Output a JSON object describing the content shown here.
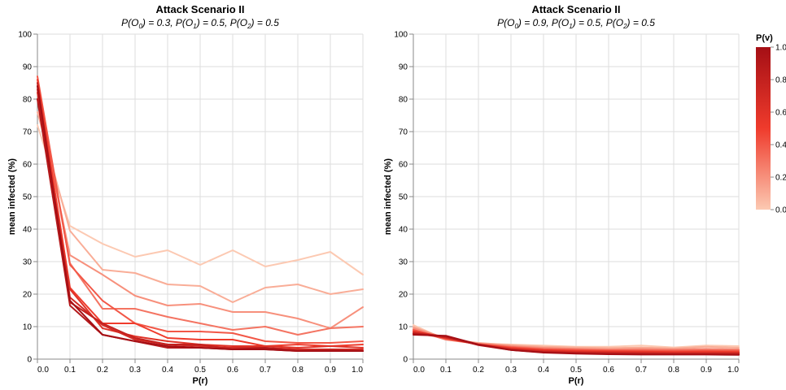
{
  "chart_data": [
    {
      "type": "line",
      "title": "Attack Scenario II",
      "subtitle": "P(O0) = 0.3, P(O1) = 0.5, P(O2) = 0.5",
      "xlabel": "P(r)",
      "ylabel": "mean infected (%)",
      "xlim": [
        0,
        1
      ],
      "ylim": [
        0,
        100
      ],
      "x": [
        0.0,
        0.1,
        0.2,
        0.3,
        0.4,
        0.5,
        0.6,
        0.7,
        0.8,
        0.9,
        1.0
      ],
      "x_ticks": [
        "0.0",
        "0.1",
        "0.2",
        "0.3",
        "0.4",
        "0.5",
        "0.6",
        "0.7",
        "0.8",
        "0.9",
        "1.0"
      ],
      "y_ticks": [
        "0",
        "10",
        "20",
        "30",
        "40",
        "50",
        "60",
        "70",
        "80",
        "90",
        "100"
      ],
      "grid": true,
      "series": [
        {
          "pv": 0.0,
          "values": [
            72,
            41,
            35.5,
            31.5,
            33.5,
            29,
            33.5,
            28.5,
            30.5,
            33,
            26
          ]
        },
        {
          "pv": 0.1,
          "values": [
            76,
            39.5,
            27.5,
            26.5,
            23,
            22.5,
            17.5,
            22,
            23,
            20,
            21.5
          ]
        },
        {
          "pv": 0.2,
          "values": [
            80,
            32,
            26,
            19.5,
            16.5,
            17,
            14.5,
            14.5,
            12.5,
            9.5,
            16
          ]
        },
        {
          "pv": 0.3,
          "values": [
            84,
            29.5,
            15.5,
            15.5,
            13,
            11,
            9,
            10,
            7.5,
            9.5,
            10
          ]
        },
        {
          "pv": 0.4,
          "values": [
            87,
            29,
            18,
            11,
            8.5,
            8.5,
            8,
            5.5,
            5,
            5,
            5.5
          ]
        },
        {
          "pv": 0.5,
          "values": [
            86,
            22,
            11,
            11,
            6.5,
            6,
            6,
            4,
            4.5,
            4,
            4.5
          ]
        },
        {
          "pv": 0.6,
          "values": [
            82,
            21.5,
            9.5,
            7,
            5.5,
            4.5,
            4,
            4,
            3.5,
            4,
            3.5
          ]
        },
        {
          "pv": 0.7,
          "values": [
            83,
            19,
            10.5,
            6,
            4.5,
            4,
            3.5,
            3.5,
            3,
            3,
            3
          ]
        },
        {
          "pv": 0.8,
          "values": [
            85,
            17.5,
            11,
            6.5,
            4.5,
            4.5,
            3,
            3,
            2.5,
            3,
            2.5
          ]
        },
        {
          "pv": 0.9,
          "values": [
            80,
            16.5,
            7.5,
            5.5,
            3.5,
            3.5,
            3,
            3.5,
            2.5,
            2.5,
            2.5
          ]
        },
        {
          "pv": 1.0,
          "values": [
            84,
            18,
            7.5,
            5.5,
            4,
            3.5,
            3,
            3,
            2.5,
            2.5,
            2.5
          ]
        }
      ]
    },
    {
      "type": "line",
      "title": "Attack Scenario II",
      "subtitle": "P(O0) = 0.9, P(O1) = 0.5, P(O2) = 0.5",
      "xlabel": "P(r)",
      "ylabel": "mean infected (%)",
      "xlim": [
        0,
        1
      ],
      "ylim": [
        0,
        100
      ],
      "x": [
        0.0,
        0.1,
        0.2,
        0.3,
        0.4,
        0.5,
        0.6,
        0.7,
        0.8,
        0.9,
        1.0
      ],
      "x_ticks": [
        "0.0",
        "0.1",
        "0.2",
        "0.3",
        "0.4",
        "0.5",
        "0.6",
        "0.7",
        "0.8",
        "0.9",
        "1.0"
      ],
      "y_ticks": [
        "0",
        "10",
        "20",
        "30",
        "40",
        "50",
        "60",
        "70",
        "80",
        "90",
        "100"
      ],
      "grid": true,
      "series": [
        {
          "pv": 0.0,
          "values": [
            10.5,
            6,
            4.8,
            4.5,
            4.2,
            3.8,
            3.8,
            4.2,
            3.6,
            4.2,
            4.0
          ]
        },
        {
          "pv": 0.1,
          "values": [
            10,
            6.2,
            5.0,
            4.3,
            3.8,
            3.6,
            3.4,
            3.6,
            3.3,
            3.8,
            3.5
          ]
        },
        {
          "pv": 0.2,
          "values": [
            9.5,
            6.5,
            4.8,
            4.0,
            3.5,
            3.2,
            3.0,
            3.2,
            3.0,
            3.2,
            3.0
          ]
        },
        {
          "pv": 0.3,
          "values": [
            9,
            6.0,
            4.7,
            3.8,
            3.2,
            3.0,
            2.8,
            2.8,
            2.8,
            2.8,
            2.8
          ]
        },
        {
          "pv": 0.4,
          "values": [
            9,
            6.3,
            4.6,
            3.6,
            3.0,
            2.8,
            2.6,
            2.6,
            2.5,
            2.6,
            2.5
          ]
        },
        {
          "pv": 0.5,
          "values": [
            8.5,
            6.5,
            4.5,
            3.4,
            2.8,
            2.5,
            2.4,
            2.3,
            2.2,
            2.3,
            2.2
          ]
        },
        {
          "pv": 0.6,
          "values": [
            8.5,
            6.8,
            4.5,
            3.2,
            2.6,
            2.3,
            2.2,
            2.1,
            2.0,
            2.0,
            2.0
          ]
        },
        {
          "pv": 0.7,
          "values": [
            8,
            6.6,
            4.4,
            3.0,
            2.4,
            2.1,
            2.0,
            1.9,
            1.8,
            1.8,
            1.8
          ]
        },
        {
          "pv": 0.8,
          "values": [
            8,
            6.9,
            4.4,
            2.9,
            2.2,
            1.9,
            1.8,
            1.7,
            1.6,
            1.6,
            1.6
          ]
        },
        {
          "pv": 0.9,
          "values": [
            7.8,
            7.0,
            4.3,
            2.8,
            2.1,
            1.8,
            1.6,
            1.5,
            1.5,
            1.5,
            1.4
          ]
        },
        {
          "pv": 1.0,
          "values": [
            7.5,
            7.2,
            4.5,
            2.8,
            2.0,
            1.7,
            1.5,
            1.4,
            1.4,
            1.4,
            1.3
          ]
        }
      ]
    }
  ],
  "legend": {
    "title": "P(v)",
    "ticks": [
      "1.0",
      "0.8",
      "0.6",
      "0.4",
      "0.2",
      "0.0"
    ],
    "placement": "right",
    "color_low": "#fcc9b2",
    "color_high": "#a50f15"
  }
}
